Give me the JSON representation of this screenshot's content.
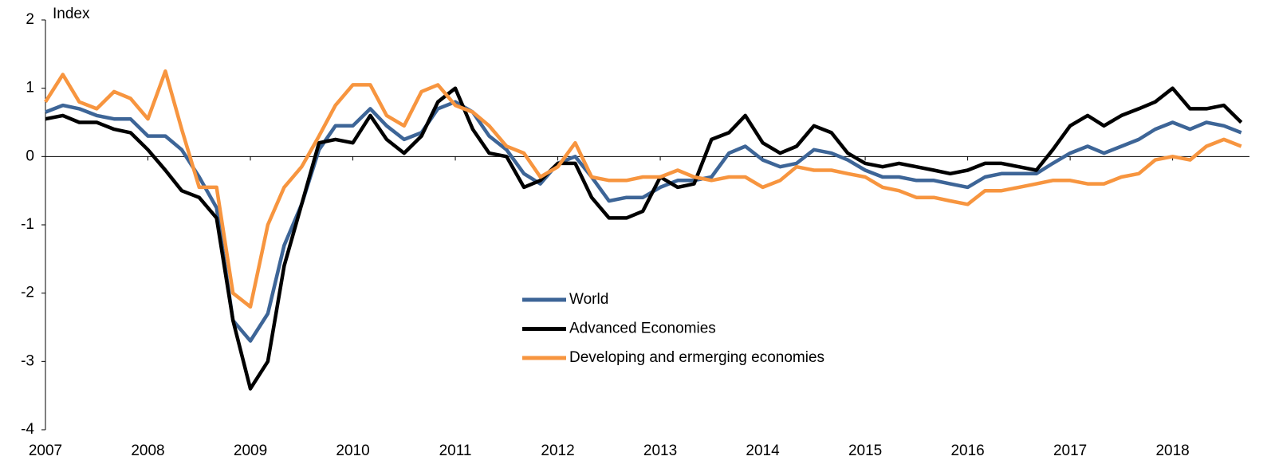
{
  "chart_data": {
    "type": "line",
    "y_label": "Index",
    "x": [
      2007,
      2007.17,
      2007.33,
      2007.5,
      2007.67,
      2007.83,
      2008,
      2008.17,
      2008.33,
      2008.5,
      2008.67,
      2008.83,
      2009,
      2009.17,
      2009.33,
      2009.5,
      2009.67,
      2009.83,
      2010,
      2010.17,
      2010.33,
      2010.5,
      2010.67,
      2010.83,
      2011,
      2011.17,
      2011.33,
      2011.5,
      2011.67,
      2011.83,
      2012,
      2012.17,
      2012.33,
      2012.5,
      2012.67,
      2012.83,
      2013,
      2013.17,
      2013.33,
      2013.5,
      2013.67,
      2013.83,
      2014,
      2014.17,
      2014.33,
      2014.5,
      2014.67,
      2014.83,
      2015,
      2015.17,
      2015.33,
      2015.5,
      2015.67,
      2015.83,
      2016,
      2016.17,
      2016.33,
      2016.5,
      2016.67,
      2016.83,
      2017,
      2017.17,
      2017.33,
      2017.5,
      2017.67,
      2017.83,
      2018,
      2018.17,
      2018.33,
      2018.5,
      2018.67
    ],
    "series": [
      {
        "name": "World",
        "color": "#3d6597",
        "values": [
          0.65,
          0.75,
          0.7,
          0.6,
          0.55,
          0.55,
          0.3,
          0.3,
          0.1,
          -0.3,
          -0.75,
          -2.4,
          -2.7,
          -2.3,
          -1.3,
          -0.7,
          0.1,
          0.45,
          0.45,
          0.7,
          0.45,
          0.25,
          0.35,
          0.7,
          0.8,
          0.65,
          0.3,
          0.1,
          -0.25,
          -0.4,
          -0.1,
          0.0,
          -0.3,
          -0.65,
          -0.6,
          -0.6,
          -0.45,
          -0.35,
          -0.35,
          -0.3,
          0.05,
          0.15,
          -0.05,
          -0.15,
          -0.1,
          0.1,
          0.05,
          -0.05,
          -0.2,
          -0.3,
          -0.3,
          -0.35,
          -0.35,
          -0.4,
          -0.45,
          -0.3,
          -0.25,
          -0.25,
          -0.25,
          -0.1,
          0.05,
          0.15,
          0.05,
          0.15,
          0.25,
          0.4,
          0.5,
          0.4,
          0.5,
          0.45,
          0.35
        ]
      },
      {
        "name": "Advanced Economies",
        "color": "#000000",
        "values": [
          0.55,
          0.6,
          0.5,
          0.5,
          0.4,
          0.35,
          0.1,
          -0.2,
          -0.5,
          -0.6,
          -0.9,
          -2.4,
          -3.4,
          -3.0,
          -1.6,
          -0.7,
          0.2,
          0.25,
          0.2,
          0.6,
          0.25,
          0.05,
          0.3,
          0.8,
          1.0,
          0.4,
          0.05,
          0.0,
          -0.45,
          -0.35,
          -0.1,
          -0.1,
          -0.6,
          -0.9,
          -0.9,
          -0.8,
          -0.3,
          -0.45,
          -0.4,
          0.25,
          0.35,
          0.6,
          0.2,
          0.05,
          0.15,
          0.45,
          0.35,
          0.05,
          -0.1,
          -0.15,
          -0.1,
          -0.15,
          -0.2,
          -0.25,
          -0.2,
          -0.1,
          -0.1,
          -0.15,
          -0.2,
          0.1,
          0.45,
          0.6,
          0.45,
          0.6,
          0.7,
          0.8,
          1.0,
          0.7,
          0.7,
          0.75,
          0.5
        ]
      },
      {
        "name": "Developing and ermerging economies",
        "color": "#f7953f",
        "values": [
          0.8,
          1.2,
          0.8,
          0.7,
          0.95,
          0.85,
          0.55,
          1.25,
          0.4,
          -0.45,
          -0.45,
          -2.0,
          -2.2,
          -1.0,
          -0.45,
          -0.15,
          0.3,
          0.75,
          1.05,
          1.05,
          0.6,
          0.45,
          0.95,
          1.05,
          0.75,
          0.65,
          0.45,
          0.15,
          0.05,
          -0.3,
          -0.15,
          0.2,
          -0.3,
          -0.35,
          -0.35,
          -0.3,
          -0.3,
          -0.2,
          -0.3,
          -0.35,
          -0.3,
          -0.3,
          -0.45,
          -0.35,
          -0.15,
          -0.2,
          -0.2,
          -0.25,
          -0.3,
          -0.45,
          -0.5,
          -0.6,
          -0.6,
          -0.65,
          -0.7,
          -0.5,
          -0.5,
          -0.45,
          -0.4,
          -0.35,
          -0.35,
          -0.4,
          -0.4,
          -0.3,
          -0.25,
          -0.05,
          0.0,
          -0.05,
          0.15,
          0.25,
          0.15
        ]
      }
    ],
    "xlim": [
      2007,
      2018.75
    ],
    "xticks": [
      2007,
      2008,
      2009,
      2010,
      2011,
      2012,
      2013,
      2014,
      2015,
      2016,
      2017,
      2018
    ],
    "ylim": [
      -4,
      2
    ],
    "yticks": [
      -4,
      -3,
      -2,
      -1,
      0,
      1,
      2
    ],
    "grid": false,
    "legend": "center"
  }
}
